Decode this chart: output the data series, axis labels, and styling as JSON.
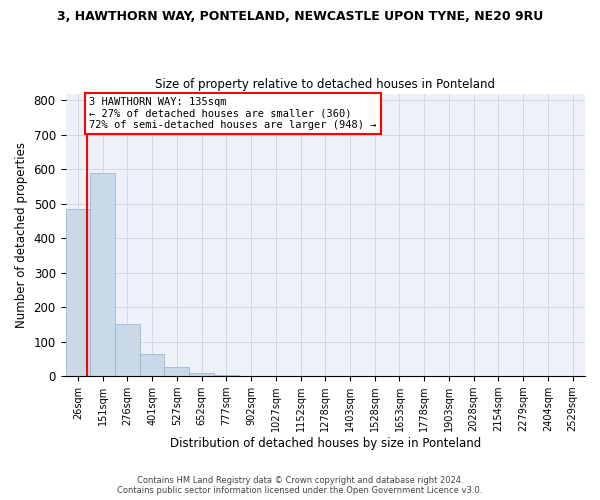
{
  "title": "3, HAWTHORN WAY, PONTELAND, NEWCASTLE UPON TYNE, NE20 9RU",
  "subtitle": "Size of property relative to detached houses in Ponteland",
  "xlabel": "Distribution of detached houses by size in Ponteland",
  "ylabel": "Number of detached properties",
  "bar_color": "#c9d9e8",
  "bar_edge_color": "#8ab4cc",
  "grid_color": "#d0d8e8",
  "background_color": "#eef2f8",
  "categories": [
    "26sqm",
    "151sqm",
    "276sqm",
    "401sqm",
    "527sqm",
    "652sqm",
    "777sqm",
    "902sqm",
    "1027sqm",
    "1152sqm",
    "1278sqm",
    "1403sqm",
    "1528sqm",
    "1653sqm",
    "1778sqm",
    "1903sqm",
    "2028sqm",
    "2154sqm",
    "2279sqm",
    "2404sqm",
    "2529sqm"
  ],
  "values": [
    485,
    590,
    150,
    65,
    27,
    8,
    2,
    0,
    0,
    0,
    0,
    0,
    0,
    0,
    0,
    0,
    0,
    0,
    0,
    0,
    0
  ],
  "ylim": [
    0,
    820
  ],
  "yticks": [
    0,
    100,
    200,
    300,
    400,
    500,
    600,
    700,
    800
  ],
  "annotation_text": "3 HAWTHORN WAY: 135sqm\n← 27% of detached houses are smaller (360)\n72% of semi-detached houses are larger (948) →",
  "annotation_box_color": "white",
  "annotation_box_edge_color": "red",
  "property_line_color": "red",
  "footer_line1": "Contains HM Land Registry data © Crown copyright and database right 2024.",
  "footer_line2": "Contains public sector information licensed under the Open Government Licence v3.0."
}
